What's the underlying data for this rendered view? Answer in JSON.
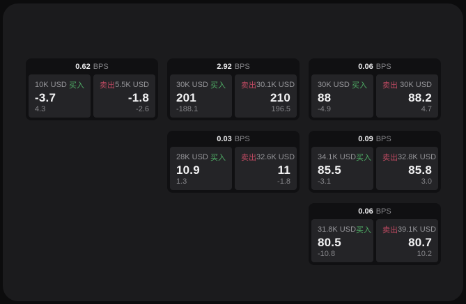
{
  "labels": {
    "bps_unit": "BPS",
    "buy": "买入",
    "sell": "卖出"
  },
  "colors": {
    "page_bg": "#0c0c0d",
    "window_bg": "#1b1b1d",
    "card_bg": "#101012",
    "panel_bg": "#242427",
    "buy_green": "#4fae66",
    "sell_red": "#c04a62",
    "value_white": "#f2f2f3",
    "muted_gray": "#86868a"
  },
  "cards": [
    {
      "bps": "0.62",
      "buy": {
        "amount": "10K USD",
        "price": "-3.7",
        "delta": "4.3"
      },
      "sell": {
        "amount": "5.5K USD",
        "price": "-1.8",
        "delta": "-2.6"
      }
    },
    {
      "bps": "2.92",
      "buy": {
        "amount": "30K USD",
        "price": "201",
        "delta": "-188.1"
      },
      "sell": {
        "amount": "30.1K USD",
        "price": "210",
        "delta": "196.5"
      }
    },
    {
      "bps": "0.06",
      "buy": {
        "amount": "30K USD",
        "price": "88",
        "delta": "-4.9"
      },
      "sell": {
        "amount": "30K USD",
        "price": "88.2",
        "delta": "4.7"
      }
    },
    {
      "bps": "0.03",
      "buy": {
        "amount": "28K USD",
        "price": "10.9",
        "delta": "1.3"
      },
      "sell": {
        "amount": "32.6K USD",
        "price": "11",
        "delta": "-1.8"
      }
    },
    {
      "bps": "0.09",
      "buy": {
        "amount": "34.1K USD",
        "price": "85.5",
        "delta": "-3.1"
      },
      "sell": {
        "amount": "32.8K USD",
        "price": "85.8",
        "delta": "3.0"
      }
    },
    {
      "bps": "0.06",
      "buy": {
        "amount": "31.8K USD",
        "price": "80.5",
        "delta": "-10.8"
      },
      "sell": {
        "amount": "39.1K USD",
        "price": "80.7",
        "delta": "10.2"
      }
    }
  ]
}
